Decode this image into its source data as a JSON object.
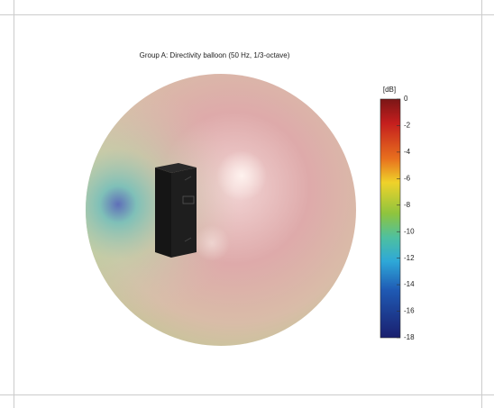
{
  "title": "Group A: Directivity balloon (50 Hz, 1/3-octave)",
  "colorbar": {
    "label": "[dB]",
    "lim": [
      -18,
      0
    ],
    "ticks": [
      0,
      -2,
      -4,
      -6,
      -8,
      -10,
      -12,
      -14,
      -16,
      -18
    ]
  }
}
